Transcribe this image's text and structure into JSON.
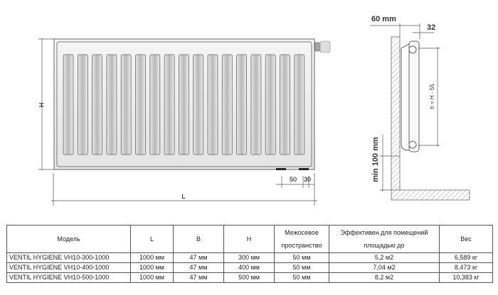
{
  "front_view": {
    "height_label": "H",
    "length_label": "L",
    "offset_50": "50",
    "offset_30": "30",
    "fin_count": 17
  },
  "side_view": {
    "wall_gap": "60 mm",
    "depth": "32",
    "center_height": "h = H - 55",
    "floor_gap": "min 100 mm"
  },
  "table": {
    "headers": [
      "Модель",
      "L",
      "B",
      "H",
      "Межосевое пространство",
      "Эффективен для помещений площадью до",
      "Вес"
    ],
    "rows": [
      [
        "VENTIL HYGIENE VH10-300-1000",
        "1000 мм",
        "47 мм",
        "300 мм",
        "50 мм",
        "5,2 м2",
        "6,589 кг"
      ],
      [
        "VENTIL HYGIENE VH10-400-1000",
        "1000 мм",
        "47 мм",
        "400 мм",
        "50 мм",
        "7,04 м2",
        "8,473 кг"
      ],
      [
        "VENTIL HYGIENE VH10-500-1000",
        "1000 мм",
        "47 мм",
        "500 мм",
        "50 мм",
        "8,2 м2",
        "10,383 кг"
      ]
    ]
  }
}
